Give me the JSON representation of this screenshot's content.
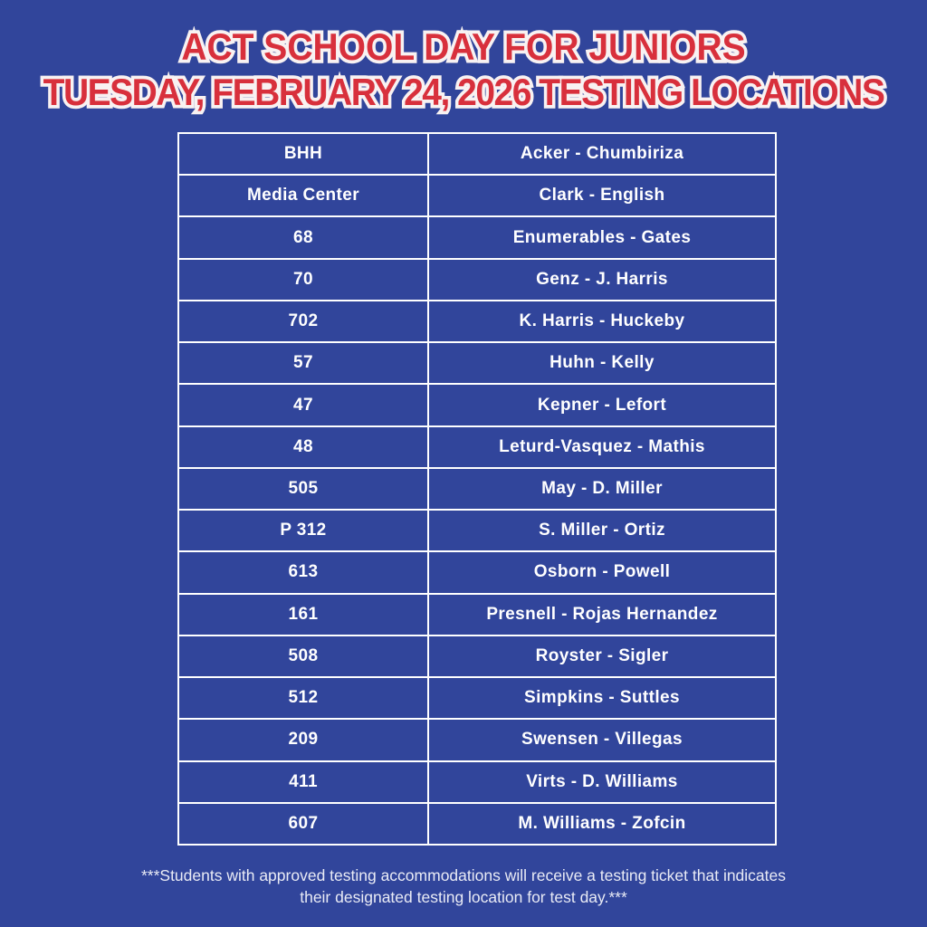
{
  "page": {
    "background_color": "#31459B",
    "accent_red": "#D8303C",
    "title_outline_color": "#F8F2F2",
    "table_border_color": "#FFFFFF",
    "table_text_color": "#FFFFFF"
  },
  "header": {
    "title_line1": "ACT SCHOOL DAY FOR JUNIORS",
    "title_line2": "TUESDAY, FEBRUARY 24, 2026 TESTING LOCATIONS"
  },
  "table": {
    "rows": [
      {
        "location": "BHH",
        "names": "Acker - Chumbiriza"
      },
      {
        "location": "Media Center",
        "names": "Clark - English"
      },
      {
        "location": "68",
        "names": "Enumerables - Gates"
      },
      {
        "location": "70",
        "names": "Genz - J. Harris"
      },
      {
        "location": "702",
        "names": "K. Harris - Huckeby"
      },
      {
        "location": "57",
        "names": "Huhn - Kelly"
      },
      {
        "location": "47",
        "names": "Kepner - Lefort"
      },
      {
        "location": "48",
        "names": "Leturd-Vasquez - Mathis"
      },
      {
        "location": "505",
        "names": "May - D. Miller"
      },
      {
        "location": "P 312",
        "names": "S. Miller - Ortiz"
      },
      {
        "location": "613",
        "names": "Osborn - Powell"
      },
      {
        "location": "161",
        "names": "Presnell - Rojas Hernandez"
      },
      {
        "location": "508",
        "names": "Royster - Sigler"
      },
      {
        "location": "512",
        "names": "Simpkins - Suttles"
      },
      {
        "location": "209",
        "names": "Swensen - Villegas"
      },
      {
        "location": "411",
        "names": "Virts - D. Williams"
      },
      {
        "location": "607",
        "names": "M. Williams - Zofcin"
      }
    ]
  },
  "footer": {
    "note_line1": "***Students with approved testing accommodations will receive a testing ticket that indicates",
    "note_line2": "their designated testing location for test day.***"
  }
}
